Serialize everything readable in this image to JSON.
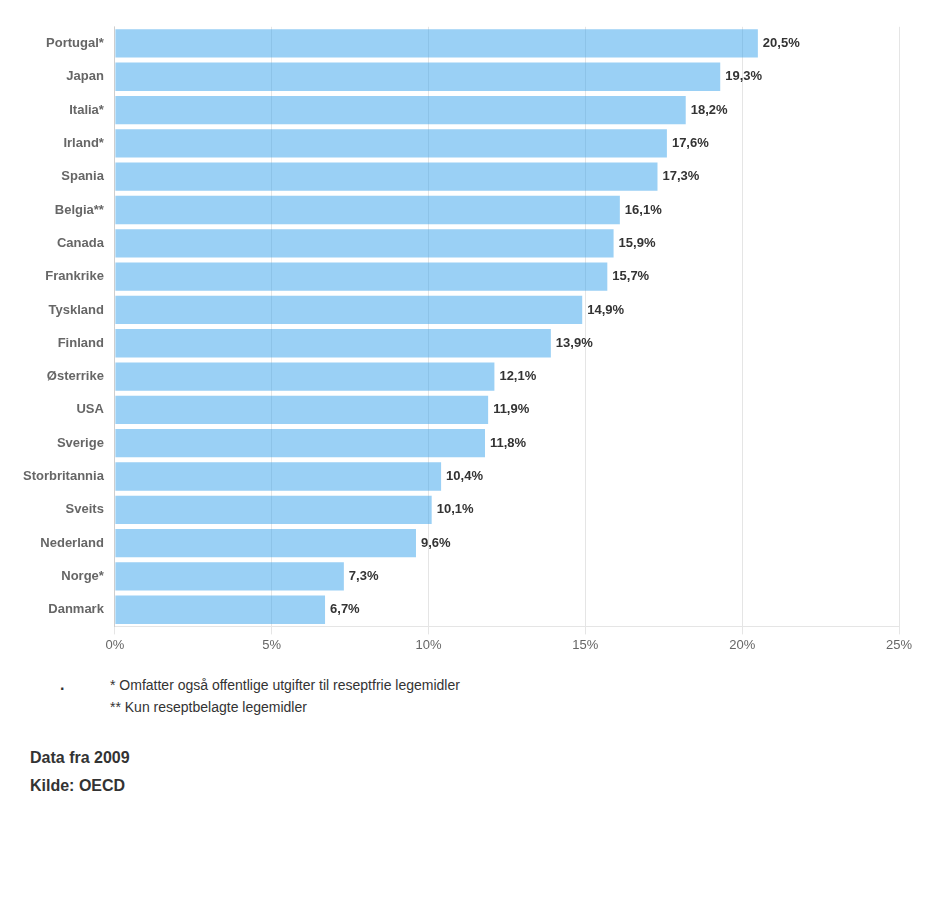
{
  "chart_data": {
    "type": "bar",
    "orientation": "horizontal",
    "categories": [
      "Danmark",
      "Norge*",
      "Nederland",
      "Sveits",
      "Storbritannia",
      "Sverige",
      "USA",
      "Østerrike",
      "Finland",
      "Tyskland",
      "Frankrike",
      "Canada",
      "Belgia**",
      "Spania",
      "Irland*",
      "Italia*",
      "Japan",
      "Portugal*"
    ],
    "values": [
      6.7,
      7.3,
      9.6,
      10.1,
      10.4,
      11.8,
      11.9,
      12.1,
      13.9,
      14.9,
      15.7,
      15.9,
      16.1,
      17.3,
      17.6,
      18.2,
      19.3,
      20.5
    ],
    "value_labels": [
      "6,7%",
      "7,3%",
      "9,6%",
      "10,1%",
      "10,4%",
      "11,8%",
      "11,9%",
      "12,1%",
      "13,9%",
      "14,9%",
      "15,7%",
      "15,9%",
      "16,1%",
      "17,3%",
      "17,6%",
      "18,2%",
      "19,3%",
      "20,5%"
    ],
    "data_labels": true,
    "xlim": [
      0,
      25
    ],
    "xticks": [
      {
        "value": 0,
        "label": "0%"
      },
      {
        "value": 5,
        "label": "5%"
      },
      {
        "value": 10,
        "label": "10%"
      },
      {
        "value": 15,
        "label": "15%"
      },
      {
        "value": 20,
        "label": "20%"
      },
      {
        "value": 25,
        "label": "25%"
      }
    ],
    "grid": true,
    "annotations": [
      ".",
      "* Omfatter også offentlige utgifter til reseptfrie legemidler",
      "** Kun reseptbelagte legemidler",
      "Data fra 2009",
      "Kilde: OECD"
    ]
  }
}
